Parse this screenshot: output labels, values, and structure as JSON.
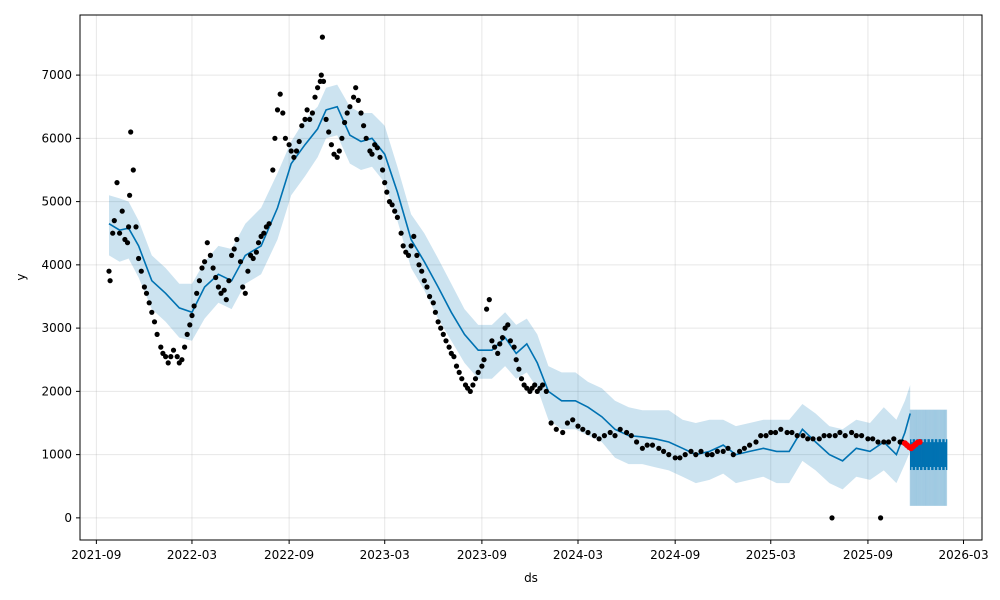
{
  "chart_data": {
    "type": "line",
    "title": "",
    "xlabel": "ds",
    "ylabel": "y",
    "x_axis_type": "date",
    "xlim": [
      "2021-08-01",
      "2026-04-05"
    ],
    "ylim": [
      -350,
      7950
    ],
    "grid": true,
    "x_ticks": [
      "2021-09",
      "2022-03",
      "2022-09",
      "2023-03",
      "2023-09",
      "2024-03",
      "2024-09",
      "2025-03",
      "2025-09",
      "2026-03"
    ],
    "y_ticks": [
      0,
      1000,
      2000,
      3000,
      4000,
      5000,
      6000,
      7000
    ],
    "colors": {
      "observed": "#000000",
      "forecast_line": "#0072B2",
      "uncertainty_band": "#0072B2",
      "future_observed": "#ff0000"
    },
    "series": [
      {
        "role": "forecast_line",
        "x": [
          "2021-09-25",
          "2021-10-15",
          "2021-11-01",
          "2021-11-20",
          "2021-12-15",
          "2022-01-10",
          "2022-02-05",
          "2022-03-01",
          "2022-03-25",
          "2022-04-20",
          "2022-05-15",
          "2022-06-10",
          "2022-07-10",
          "2022-08-10",
          "2022-09-05",
          "2022-10-01",
          "2022-10-25",
          "2022-11-10",
          "2022-12-01",
          "2022-12-25",
          "2023-01-15",
          "2023-02-05",
          "2023-03-01",
          "2023-03-25",
          "2023-04-20",
          "2023-05-15",
          "2023-06-10",
          "2023-07-05",
          "2023-07-30",
          "2023-08-25",
          "2023-09-20",
          "2023-10-15",
          "2023-11-05",
          "2023-11-25",
          "2023-12-15",
          "2024-01-05",
          "2024-01-30",
          "2024-02-25",
          "2024-03-20",
          "2024-04-15",
          "2024-05-10",
          "2024-06-05",
          "2024-07-01",
          "2024-07-25",
          "2024-08-20",
          "2024-09-15",
          "2024-10-10",
          "2024-11-05",
          "2024-12-01",
          "2024-12-25",
          "2025-01-20",
          "2025-02-15",
          "2025-03-12",
          "2025-04-05",
          "2025-04-30",
          "2025-05-25",
          "2025-06-20",
          "2025-07-15",
          "2025-08-10",
          "2025-09-05",
          "2025-10-01",
          "2025-10-25",
          "2025-11-10",
          "2025-11-20"
        ],
        "y": [
          4650,
          4550,
          4580,
          4300,
          3750,
          3550,
          3320,
          3250,
          3650,
          3850,
          3750,
          4150,
          4300,
          4900,
          5600,
          5900,
          6150,
          6450,
          6500,
          6050,
          5950,
          6000,
          5750,
          5150,
          4400,
          4050,
          3650,
          3250,
          2900,
          2650,
          2650,
          2850,
          2600,
          2750,
          2450,
          2000,
          1850,
          1850,
          1750,
          1600,
          1400,
          1300,
          1280,
          1250,
          1200,
          1100,
          1000,
          1050,
          1150,
          1000,
          1050,
          1100,
          1050,
          1050,
          1400,
          1200,
          1000,
          900,
          1100,
          1050,
          1200,
          1000,
          1350,
          1650
        ]
      },
      {
        "role": "uncertainty_band",
        "x": [
          "2021-09-25",
          "2021-10-15",
          "2021-11-01",
          "2021-11-20",
          "2021-12-15",
          "2022-01-10",
          "2022-02-05",
          "2022-03-01",
          "2022-03-25",
          "2022-04-20",
          "2022-05-15",
          "2022-06-10",
          "2022-07-10",
          "2022-08-10",
          "2022-09-05",
          "2022-10-01",
          "2022-10-25",
          "2022-11-10",
          "2022-12-01",
          "2022-12-25",
          "2023-01-15",
          "2023-02-05",
          "2023-03-01",
          "2023-03-25",
          "2023-04-20",
          "2023-05-15",
          "2023-06-10",
          "2023-07-05",
          "2023-07-30",
          "2023-08-25",
          "2023-09-20",
          "2023-10-15",
          "2023-11-05",
          "2023-11-25",
          "2023-12-15",
          "2024-01-05",
          "2024-01-30",
          "2024-02-25",
          "2024-03-20",
          "2024-04-15",
          "2024-05-10",
          "2024-06-05",
          "2024-07-01",
          "2024-07-25",
          "2024-08-20",
          "2024-09-15",
          "2024-10-10",
          "2024-11-05",
          "2024-12-01",
          "2024-12-25",
          "2025-01-20",
          "2025-02-15",
          "2025-03-12",
          "2025-04-05",
          "2025-04-30",
          "2025-05-25",
          "2025-06-20",
          "2025-07-15",
          "2025-08-10",
          "2025-09-05",
          "2025-10-01",
          "2025-10-25",
          "2025-11-10",
          "2025-11-20"
        ],
        "upper": [
          5100,
          5050,
          5000,
          4700,
          4150,
          3950,
          3700,
          3700,
          4050,
          4300,
          4250,
          4650,
          4900,
          5450,
          5950,
          6300,
          6500,
          6800,
          6850,
          6500,
          6400,
          6400,
          6200,
          5550,
          4800,
          4500,
          4100,
          3700,
          3300,
          3050,
          3050,
          3250,
          3050,
          3150,
          2900,
          2400,
          2300,
          2300,
          2150,
          2050,
          1850,
          1750,
          1700,
          1700,
          1700,
          1550,
          1500,
          1550,
          1550,
          1450,
          1500,
          1550,
          1550,
          1550,
          1800,
          1650,
          1450,
          1400,
          1550,
          1500,
          1750,
          1550,
          1850,
          2100
        ],
        "lower": [
          4150,
          4050,
          4100,
          3800,
          3300,
          3100,
          2850,
          2800,
          3150,
          3400,
          3300,
          3700,
          3850,
          4400,
          5100,
          5400,
          5700,
          6000,
          6050,
          5600,
          5500,
          5550,
          5300,
          4700,
          3950,
          3600,
          3150,
          2800,
          2450,
          2200,
          2200,
          2400,
          2200,
          2300,
          2050,
          1550,
          1400,
          1400,
          1300,
          1200,
          950,
          850,
          850,
          800,
          750,
          650,
          550,
          600,
          700,
          550,
          600,
          650,
          550,
          550,
          900,
          750,
          550,
          450,
          650,
          600,
          750,
          550,
          850,
          1050
        ]
      },
      {
        "role": "forecast_extension",
        "x_start": "2025-11-20",
        "x_end": "2026-01-28",
        "center_range": [
          750,
          1250
        ],
        "band_range": [
          150,
          1750
        ]
      },
      {
        "role": "observed",
        "x": [
          "2021-09-25",
          "2021-09-27",
          "2021-10-02",
          "2021-10-05",
          "2021-10-10",
          "2021-10-15",
          "2021-10-20",
          "2021-10-25",
          "2021-10-30",
          "2021-11-01",
          "2021-11-03",
          "2021-11-05",
          "2021-11-10",
          "2021-11-15",
          "2021-11-20",
          "2021-11-25",
          "2021-12-01",
          "2021-12-05",
          "2021-12-10",
          "2021-12-15",
          "2021-12-20",
          "2021-12-25",
          "2022-01-01",
          "2022-01-05",
          "2022-01-10",
          "2022-01-15",
          "2022-01-20",
          "2022-01-25",
          "2022-02-01",
          "2022-02-05",
          "2022-02-10",
          "2022-02-15",
          "2022-02-20",
          "2022-02-25",
          "2022-03-01",
          "2022-03-05",
          "2022-03-10",
          "2022-03-15",
          "2022-03-20",
          "2022-03-25",
          "2022-03-30",
          "2022-04-05",
          "2022-04-10",
          "2022-04-15",
          "2022-04-20",
          "2022-04-25",
          "2022-05-01",
          "2022-05-05",
          "2022-05-10",
          "2022-05-15",
          "2022-05-20",
          "2022-05-25",
          "2022-06-01",
          "2022-06-05",
          "2022-06-10",
          "2022-06-15",
          "2022-06-20",
          "2022-06-25",
          "2022-07-01",
          "2022-07-05",
          "2022-07-10",
          "2022-07-15",
          "2022-07-20",
          "2022-07-25",
          "2022-08-01",
          "2022-08-05",
          "2022-08-10",
          "2022-08-15",
          "2022-08-20",
          "2022-08-25",
          "2022-09-01",
          "2022-09-05",
          "2022-09-10",
          "2022-09-15",
          "2022-09-20",
          "2022-09-25",
          "2022-10-01",
          "2022-10-05",
          "2022-10-10",
          "2022-10-15",
          "2022-10-20",
          "2022-10-25",
          "2022-10-30",
          "2022-11-01",
          "2022-11-03",
          "2022-11-05",
          "2022-11-10",
          "2022-11-15",
          "2022-11-20",
          "2022-11-25",
          "2022-12-01",
          "2022-12-05",
          "2022-12-10",
          "2022-12-15",
          "2022-12-20",
          "2022-12-25",
          "2023-01-01",
          "2023-01-05",
          "2023-01-10",
          "2023-01-15",
          "2023-01-20",
          "2023-01-25",
          "2023-02-01",
          "2023-02-05",
          "2023-02-10",
          "2023-02-15",
          "2023-02-20",
          "2023-02-25",
          "2023-03-01",
          "2023-03-05",
          "2023-03-10",
          "2023-03-15",
          "2023-03-20",
          "2023-03-25",
          "2023-04-01",
          "2023-04-05",
          "2023-04-10",
          "2023-04-15",
          "2023-04-20",
          "2023-04-25",
          "2023-05-01",
          "2023-05-05",
          "2023-05-10",
          "2023-05-15",
          "2023-05-20",
          "2023-05-25",
          "2023-06-01",
          "2023-06-05",
          "2023-06-10",
          "2023-06-15",
          "2023-06-20",
          "2023-06-25",
          "2023-07-01",
          "2023-07-05",
          "2023-07-10",
          "2023-07-15",
          "2023-07-20",
          "2023-07-25",
          "2023-08-01",
          "2023-08-05",
          "2023-08-10",
          "2023-08-15",
          "2023-08-20",
          "2023-08-25",
          "2023-09-01",
          "2023-09-05",
          "2023-09-10",
          "2023-09-15",
          "2023-09-20",
          "2023-09-25",
          "2023-10-01",
          "2023-10-05",
          "2023-10-10",
          "2023-10-15",
          "2023-10-20",
          "2023-10-25",
          "2023-11-01",
          "2023-11-05",
          "2023-11-10",
          "2023-11-15",
          "2023-11-20",
          "2023-11-25",
          "2023-12-01",
          "2023-12-05",
          "2023-12-10",
          "2023-12-15",
          "2023-12-20",
          "2023-12-25",
          "2024-01-01",
          "2024-01-10",
          "2024-01-20",
          "2024-02-01",
          "2024-02-10",
          "2024-02-20",
          "2024-03-01",
          "2024-03-10",
          "2024-03-20",
          "2024-04-01",
          "2024-04-10",
          "2024-04-20",
          "2024-05-01",
          "2024-05-10",
          "2024-05-20",
          "2024-06-01",
          "2024-06-10",
          "2024-06-20",
          "2024-07-01",
          "2024-07-10",
          "2024-07-20",
          "2024-08-01",
          "2024-08-10",
          "2024-08-20",
          "2024-09-01",
          "2024-09-10",
          "2024-09-20",
          "2024-10-01",
          "2024-10-10",
          "2024-10-20",
          "2024-11-01",
          "2024-11-10",
          "2024-11-20",
          "2024-12-01",
          "2024-12-10",
          "2024-12-20",
          "2025-01-01",
          "2025-01-10",
          "2025-01-20",
          "2025-02-01",
          "2025-02-10",
          "2025-02-20",
          "2025-03-01",
          "2025-03-10",
          "2025-03-20",
          "2025-04-01",
          "2025-04-10",
          "2025-04-20",
          "2025-05-01",
          "2025-05-10",
          "2025-05-20",
          "2025-06-01",
          "2025-06-10",
          "2025-06-20",
          "2025-07-01",
          "2025-07-10",
          "2025-07-20",
          "2025-08-01",
          "2025-08-10",
          "2025-08-20",
          "2025-09-01",
          "2025-09-10",
          "2025-09-20",
          "2025-10-01",
          "2025-10-10",
          "2025-10-20",
          "2025-11-01",
          "2025-11-05"
        ],
        "y": [
          3900,
          3750,
          4500,
          4700,
          5300,
          4500,
          4850,
          4400,
          4350,
          4600,
          5100,
          6100,
          5500,
          4600,
          4100,
          3900,
          3650,
          3550,
          3400,
          3250,
          3100,
          2900,
          2700,
          2600,
          2550,
          2450,
          2550,
          2650,
          2550,
          2450,
          2500,
          2700,
          2900,
          3050,
          3200,
          3350,
          3550,
          3750,
          3950,
          4050,
          4350,
          4150,
          3950,
          3800,
          3650,
          3550,
          3600,
          3450,
          3750,
          4150,
          4250,
          4400,
          4050,
          3650,
          3550,
          3900,
          4150,
          4100,
          4200,
          4350,
          4450,
          4500,
          4600,
          4650,
          5500,
          6000,
          6450,
          6700,
          6400,
          6000,
          5900,
          5800,
          5700,
          5800,
          5950,
          6200,
          6300,
          6450,
          6300,
          6400,
          6650,
          6800,
          6900,
          7000,
          7600,
          6900,
          6300,
          6100,
          5900,
          5750,
          5700,
          5800,
          6000,
          6250,
          6400,
          6500,
          6650,
          6800,
          6600,
          6400,
          6200,
          6000,
          5800,
          5750,
          5900,
          5850,
          5700,
          5500,
          5300,
          5150,
          5000,
          4950,
          4850,
          4750,
          4500,
          4300,
          4200,
          4150,
          4300,
          4450,
          4150,
          4000,
          3900,
          3750,
          3650,
          3500,
          3400,
          3250,
          3100,
          3000,
          2900,
          2800,
          2700,
          2600,
          2550,
          2400,
          2300,
          2200,
          2100,
          2050,
          2000,
          2100,
          2200,
          2300,
          2400,
          2500,
          3300,
          3450,
          2800,
          2700,
          2600,
          2750,
          2850,
          3000,
          3050,
          2800,
          2700,
          2500,
          2350,
          2200,
          2100,
          2050,
          2000,
          2050,
          2100,
          2000,
          2050,
          2100,
          2000,
          1500,
          1400,
          1350,
          1500,
          1550,
          1450,
          1400,
          1350,
          1300,
          1250,
          1300,
          1350,
          1300,
          1400,
          1350,
          1300,
          1200,
          1100,
          1150,
          1150,
          1100,
          1050,
          1000,
          950,
          950,
          1000,
          1050,
          1000,
          1050,
          1000,
          1000,
          1050,
          1050,
          1100,
          1000,
          1050,
          1100,
          1150,
          1200,
          1300,
          1300,
          1350,
          1350,
          1400,
          1350,
          1350,
          1300,
          1300,
          1250,
          1250,
          1250,
          1300,
          1300,
          1300,
          1350,
          1300,
          1350,
          1300,
          1300,
          1250,
          1250,
          1200,
          1200,
          1200,
          1250,
          1200,
          1200
        ],
        "outliers": [
          {
            "x": "2025-06-25",
            "y": 0
          },
          {
            "x": "2025-09-25",
            "y": 0
          }
        ]
      },
      {
        "role": "future_observed",
        "x": [
          "2025-11-10",
          "2025-11-14",
          "2025-11-18",
          "2025-11-22",
          "2025-11-26",
          "2025-11-30",
          "2025-12-04",
          "2025-12-08"
        ],
        "y": [
          1180,
          1150,
          1120,
          1100,
          1130,
          1160,
          1190,
          1200
        ]
      }
    ]
  }
}
